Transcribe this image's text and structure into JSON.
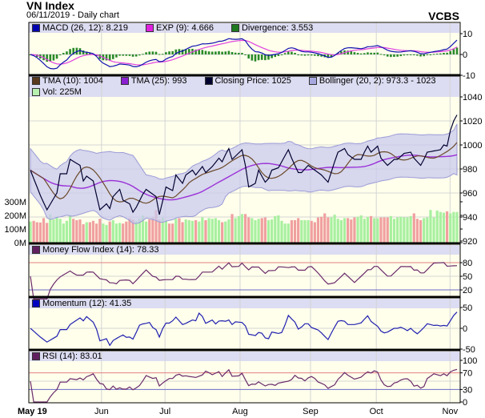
{
  "header": {
    "title": "VN Index",
    "subtitle": "06/11/2019 - Daily chart",
    "brand": "VCBS"
  },
  "legends": {
    "macd": [
      {
        "label": "MACD (26, 12): 8.219",
        "color": "#0000b0"
      },
      {
        "label": "EXP (9): 4.666",
        "color": "#e020e0"
      },
      {
        "label": "Divergence: 3.553",
        "color": "#1f7a1f"
      }
    ],
    "price": [
      {
        "label": "TMA (10): 1004",
        "color": "#5a3a1e"
      },
      {
        "label": "TMA (25): 993",
        "color": "#8a20d0"
      },
      {
        "label": "Closing Price: 1025",
        "color": "#000030"
      },
      {
        "label": "Bollinger (20, 2): 973.3 - 1023",
        "color": "#a8a8e0"
      }
    ],
    "volume": {
      "label": "Vol: 225M",
      "color": "#b8f0b0"
    },
    "mfi": {
      "label": "Money Flow Index (14): 78.33",
      "color": "#602060"
    },
    "momentum": {
      "label": "Momentum (12): 41.35",
      "color": "#0000c0"
    },
    "rsi": {
      "label": "RSI (14): 83.01",
      "color": "#602060"
    }
  },
  "colors": {
    "plot_bg": "#ffffec",
    "band_bg": "#dcdcf2",
    "close": "#000030",
    "tma10": "#6b4a2a",
    "tma25": "#9a30d8",
    "boll_fill": "#c9c9ee",
    "boll_edge": "#9a9ad8",
    "macd": "#1010b0",
    "signal": "#e040e0",
    "div": "#2a8a2a",
    "vol_up": "#a8f0a0",
    "vol_down": "#f0a0a0",
    "upper_line": "#e08080",
    "lower_line": "#6a6ac8",
    "osc": "#6a2a6a",
    "mom": "#2020b0"
  },
  "chart_data": {
    "type": "line",
    "title": "VN Index",
    "xlabel": "",
    "ylabel": "",
    "x_ticks": [
      {
        "label": "May 19",
        "t": 0
      },
      {
        "label": "Jun",
        "t": 21.5
      },
      {
        "label": "Jul",
        "t": 40.7
      },
      {
        "label": "Aug",
        "t": 63.4
      },
      {
        "label": "Sep",
        "t": 84.7
      },
      {
        "label": "Oct",
        "t": 104.6
      },
      {
        "label": "Nov",
        "t": 126.9
      }
    ],
    "days": 130,
    "close_points": [
      [
        0,
        979
      ],
      [
        3,
        958
      ],
      [
        5,
        946
      ],
      [
        8,
        960
      ],
      [
        9,
        976
      ],
      [
        11,
        976
      ],
      [
        12,
        988
      ],
      [
        15,
        983
      ],
      [
        16,
        970
      ],
      [
        17,
        974
      ],
      [
        19,
        970
      ],
      [
        21,
        946
      ],
      [
        23,
        951
      ],
      [
        24,
        947
      ],
      [
        25,
        957
      ],
      [
        27,
        963
      ],
      [
        28,
        954
      ],
      [
        30,
        951
      ],
      [
        31,
        944
      ],
      [
        32,
        948
      ],
      [
        34,
        959
      ],
      [
        35,
        963
      ],
      [
        37,
        959
      ],
      [
        38,
        957
      ],
      [
        39,
        942
      ],
      [
        41,
        965
      ],
      [
        43,
        962
      ],
      [
        44,
        975
      ],
      [
        46,
        968
      ],
      [
        47,
        975
      ],
      [
        49,
        979
      ],
      [
        50,
        975
      ],
      [
        52,
        982
      ],
      [
        53,
        977
      ],
      [
        55,
        982
      ],
      [
        57,
        989
      ],
      [
        58,
        986
      ],
      [
        59,
        992
      ],
      [
        60,
        997
      ],
      [
        61,
        988
      ],
      [
        64,
        996
      ],
      [
        65,
        983
      ],
      [
        66,
        965
      ],
      [
        68,
        968
      ],
      [
        69,
        979
      ],
      [
        71,
        969
      ],
      [
        72,
        972
      ],
      [
        73,
        979
      ],
      [
        75,
        981
      ],
      [
        78,
        996
      ],
      [
        79,
        989
      ],
      [
        81,
        977
      ],
      [
        82,
        977
      ],
      [
        84,
        983
      ],
      [
        86,
        979
      ],
      [
        88,
        975
      ],
      [
        90,
        969
      ],
      [
        92,
        986
      ],
      [
        93,
        994
      ],
      [
        95,
        997
      ],
      [
        96,
        992
      ],
      [
        98,
        988
      ],
      [
        100,
        988
      ],
      [
        101,
        994
      ],
      [
        102,
        999
      ],
      [
        103,
        994
      ],
      [
        105,
        999
      ],
      [
        106,
        989
      ],
      [
        108,
        983
      ],
      [
        110,
        988
      ],
      [
        111,
        988
      ],
      [
        113,
        993
      ],
      [
        115,
        994
      ],
      [
        116,
        989
      ],
      [
        118,
        983
      ],
      [
        119,
        988
      ],
      [
        120,
        994
      ],
      [
        122,
        995
      ],
      [
        124,
        996
      ],
      [
        125,
        1000
      ],
      [
        126,
        999
      ],
      [
        127,
        1012
      ],
      [
        128,
        1020
      ],
      [
        129,
        1025
      ]
    ],
    "volume_m": [
      155,
      160,
      150,
      148,
      180,
      145,
      210,
      170,
      185,
      175,
      140,
      160,
      205,
      175,
      165,
      170,
      135,
      150,
      150,
      160,
      140,
      175,
      140,
      130,
      155,
      165,
      140,
      145,
      140,
      155,
      180,
      170,
      160,
      175,
      200,
      155,
      170,
      185,
      240,
      170,
      185,
      165,
      140,
      140,
      175,
      180,
      150,
      170,
      165,
      160,
      165,
      155,
      185,
      165,
      180,
      175,
      180,
      165,
      150,
      155,
      170,
      210,
      180,
      195,
      210,
      210,
      185,
      180,
      165,
      175,
      180,
      185,
      165,
      170,
      195,
      200,
      160,
      140,
      140,
      165,
      165,
      180,
      165,
      165,
      165,
      160,
      150,
      185,
      190,
      215,
      185,
      185,
      205,
      175,
      165,
      180,
      180,
      170,
      185,
      190,
      200,
      175,
      190,
      195,
      180,
      180,
      185,
      185,
      185,
      195,
      175,
      185,
      190,
      185,
      185,
      195,
      215,
      175,
      165,
      180,
      185,
      240,
      185,
      235,
      225,
      220,
      230,
      215,
      225,
      225
    ],
    "indicators": {
      "tma_short": 10,
      "tma_long": 25,
      "bollinger": [
        20,
        2
      ],
      "macd": [
        26,
        12,
        9
      ],
      "mfi": 14,
      "momentum": 12,
      "rsi": 14
    },
    "axes": {
      "macd": {
        "ticks": [
          "10",
          "0",
          "-10"
        ],
        "values": [
          10,
          0,
          -10
        ]
      },
      "price": {
        "ticks": [
          "1040",
          "1020",
          "1000",
          "980",
          "960",
          "940",
          "920"
        ],
        "values": [
          1040,
          1020,
          1000,
          980,
          960,
          940,
          920
        ]
      },
      "volume": {
        "ticks": [
          "300M",
          "200M",
          "100M",
          "0M"
        ],
        "values": [
          300,
          200,
          100,
          0
        ]
      },
      "mfi": {
        "ticks": [
          "80",
          "50",
          "20"
        ],
        "values": [
          80,
          50,
          20
        ]
      },
      "momentum": {
        "ticks": [
          "50",
          "0",
          "-50"
        ],
        "values": [
          50,
          0,
          -50
        ]
      },
      "rsi": {
        "ticks": [
          "100",
          "70",
          "30",
          "0"
        ],
        "values": [
          100,
          70,
          30,
          0
        ]
      }
    }
  }
}
